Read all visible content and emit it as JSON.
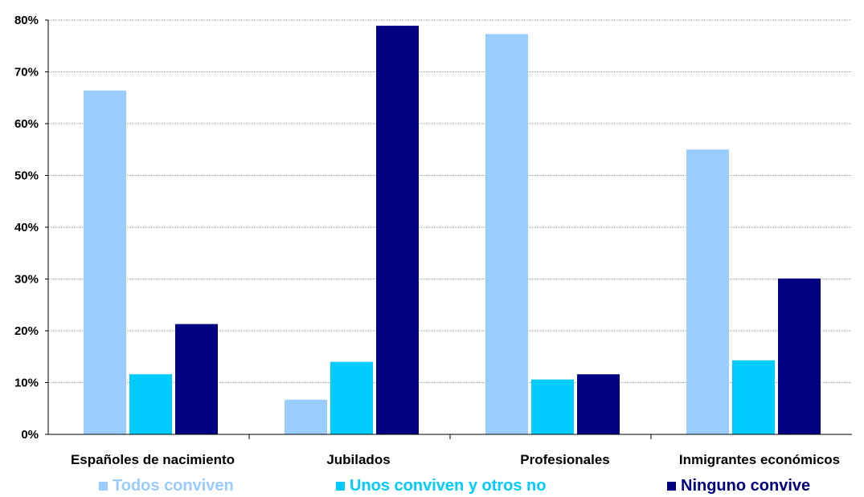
{
  "chart_data": {
    "type": "bar",
    "categories": [
      "Españoles de nacimiento",
      "Jubilados",
      "Profesionales",
      "Inmigrantes económicos"
    ],
    "series": [
      {
        "name": "Todos conviven",
        "color": "#99ccff",
        "values": [
          66.4,
          6.7,
          77.3,
          55.0
        ]
      },
      {
        "name": "Unos conviven y otros no",
        "color": "#00ccff",
        "values": [
          11.6,
          14.0,
          10.6,
          14.3
        ]
      },
      {
        "name": "Ninguno convive",
        "color": "#000080",
        "values": [
          21.3,
          78.9,
          11.6,
          30.1
        ]
      }
    ],
    "ylim": [
      0,
      80
    ],
    "yticks": [
      "0%",
      "10%",
      "20%",
      "30%",
      "40%",
      "50%",
      "60%",
      "70%",
      "80%"
    ],
    "grid": true,
    "legend_position": "bottom"
  }
}
